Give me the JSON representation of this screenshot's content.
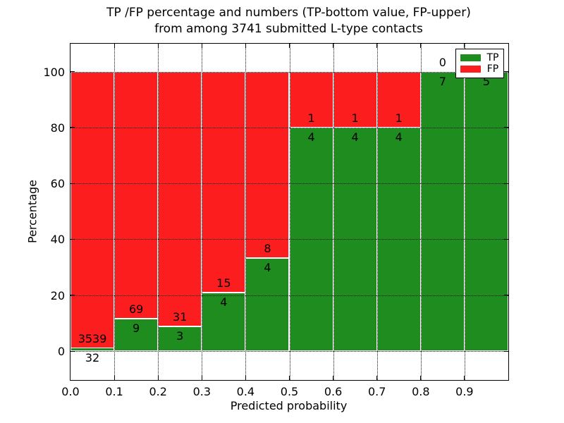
{
  "chart_data": {
    "type": "bar",
    "stacked": true,
    "title_line1": "TP /FP percentage and numbers (TP-bottom value, FP-upper)",
    "title_line2": "from among 3741 submitted L-type contacts",
    "xlabel": "Predicted probability",
    "ylabel": "Percentage",
    "total_contacts": 3741,
    "x_tick_labels": [
      "0.0",
      "0.1",
      "0.2",
      "0.3",
      "0.4",
      "0.5",
      "0.6",
      "0.7",
      "0.8",
      "0.9"
    ],
    "y_ticks": [
      0,
      20,
      40,
      60,
      80,
      100
    ],
    "xlim": [
      0.0,
      1.0
    ],
    "ylim": [
      -10.34,
      110
    ],
    "bin_width": 0.1,
    "grid": true,
    "grid_style": "dotted, drawn above bars",
    "bar_edge_color": "#ffffff",
    "series": [
      {
        "name": "TP",
        "color": "#1e8c1e",
        "counts": [
          32,
          9,
          3,
          4,
          4,
          4,
          4,
          4,
          7,
          5
        ]
      },
      {
        "name": "FP",
        "color": "#fc1e1e",
        "counts": [
          3539,
          69,
          31,
          15,
          8,
          1,
          1,
          1,
          0,
          0
        ]
      }
    ],
    "tp_percent": [
      0.9,
      11.5,
      8.8,
      21.1,
      33.3,
      80.0,
      80.0,
      80.0,
      100.0,
      100.0
    ],
    "legend": {
      "position": "upper right",
      "entries": [
        {
          "label": "TP",
          "color": "#1e8c1e"
        },
        {
          "label": "FP",
          "color": "#fc1e1e"
        }
      ]
    }
  }
}
